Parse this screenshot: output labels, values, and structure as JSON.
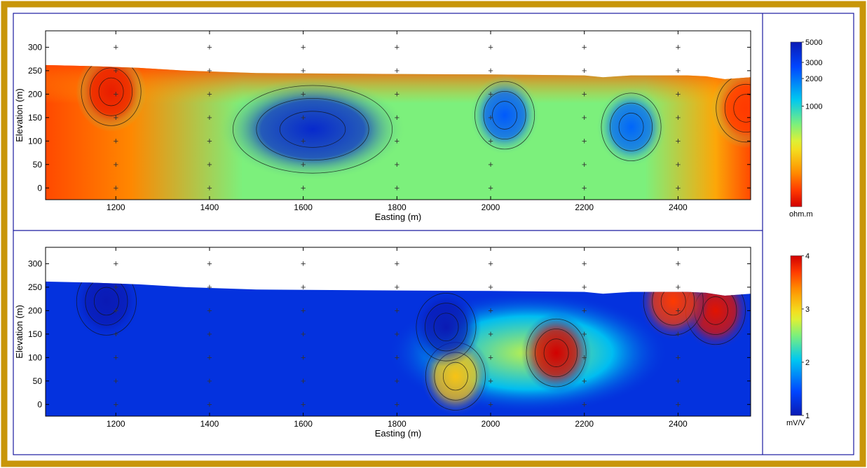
{
  "colors": {
    "frame": "#C8960A",
    "panel_border": "#1a1aa0",
    "contour_line": "#111111"
  },
  "chart_data": [
    {
      "type": "heatmap",
      "title": "",
      "xlabel": "Easting (m)",
      "ylabel": "Elevation (m)",
      "xlim": [
        1050,
        2555
      ],
      "ylim": [
        -25,
        335
      ],
      "xticks": [
        1200,
        1400,
        1600,
        1800,
        2000,
        2200,
        2400
      ],
      "yticks": [
        0,
        50,
        100,
        150,
        200,
        250,
        300
      ],
      "grid_markers": "+",
      "colormap": "reverse-rainbow (red=low, blue=high)",
      "colorbar": {
        "scale": "log",
        "ticks": [
          "5000",
          "3000",
          "2000",
          "1000"
        ],
        "unit": "ohm.m",
        "range": [
          80,
          5000
        ]
      },
      "surface": [
        [
          1050,
          262
        ],
        [
          1140,
          260
        ],
        [
          1250,
          256
        ],
        [
          1350,
          250
        ],
        [
          1500,
          245
        ],
        [
          1800,
          243
        ],
        [
          2000,
          242
        ],
        [
          2200,
          240
        ],
        [
          2240,
          236
        ],
        [
          2300,
          240
        ],
        [
          2420,
          240
        ],
        [
          2460,
          238
        ],
        [
          2500,
          232
        ],
        [
          2555,
          236
        ]
      ],
      "anomalies": [
        {
          "x": 1620,
          "y": 125,
          "level": 0.95,
          "label": "high resistivity"
        },
        {
          "x": 2030,
          "y": 155,
          "level": 0.82,
          "label": "high resistivity"
        },
        {
          "x": 2300,
          "y": 130,
          "level": 0.8,
          "label": "high resistivity"
        },
        {
          "x": 1190,
          "y": 205,
          "level": 0.05,
          "label": "low resistivity"
        },
        {
          "x": 2545,
          "y": 170,
          "level": 0.1,
          "label": "low resistivity"
        }
      ]
    },
    {
      "type": "heatmap",
      "title": "",
      "xlabel": "Easting (m)",
      "ylabel": "Elevation (m)",
      "xlim": [
        1050,
        2555
      ],
      "ylim": [
        -25,
        335
      ],
      "xticks": [
        1200,
        1400,
        1600,
        1800,
        2000,
        2200,
        2400
      ],
      "yticks": [
        0,
        50,
        100,
        150,
        200,
        250,
        300
      ],
      "grid_markers": "+",
      "colormap": "rainbow (blue=low, red=high)",
      "colorbar": {
        "scale": "linear",
        "ticks": [
          "4",
          "3",
          "2",
          "1"
        ],
        "unit": "mV/V",
        "range": [
          1,
          4
        ]
      },
      "surface": [
        [
          1050,
          262
        ],
        [
          1140,
          260
        ],
        [
          1250,
          256
        ],
        [
          1350,
          250
        ],
        [
          1500,
          245
        ],
        [
          1800,
          243
        ],
        [
          2000,
          242
        ],
        [
          2200,
          240
        ],
        [
          2240,
          236
        ],
        [
          2300,
          240
        ],
        [
          2420,
          240
        ],
        [
          2460,
          238
        ],
        [
          2500,
          232
        ],
        [
          2555,
          236
        ]
      ],
      "anomalies": [
        {
          "x": 2140,
          "y": 110,
          "value": 4.0,
          "label": "high chargeability"
        },
        {
          "x": 2480,
          "y": 200,
          "value": 3.9,
          "label": "high chargeability"
        },
        {
          "x": 2390,
          "y": 220,
          "value": 3.7,
          "label": "high chargeability"
        },
        {
          "x": 1925,
          "y": 60,
          "value": 3.1,
          "label": "moderate chargeability"
        },
        {
          "x": 1905,
          "y": 165,
          "value": 1.0,
          "label": "low chargeability"
        },
        {
          "x": 1180,
          "y": 220,
          "value": 1.0,
          "label": "low chargeability"
        }
      ]
    }
  ]
}
